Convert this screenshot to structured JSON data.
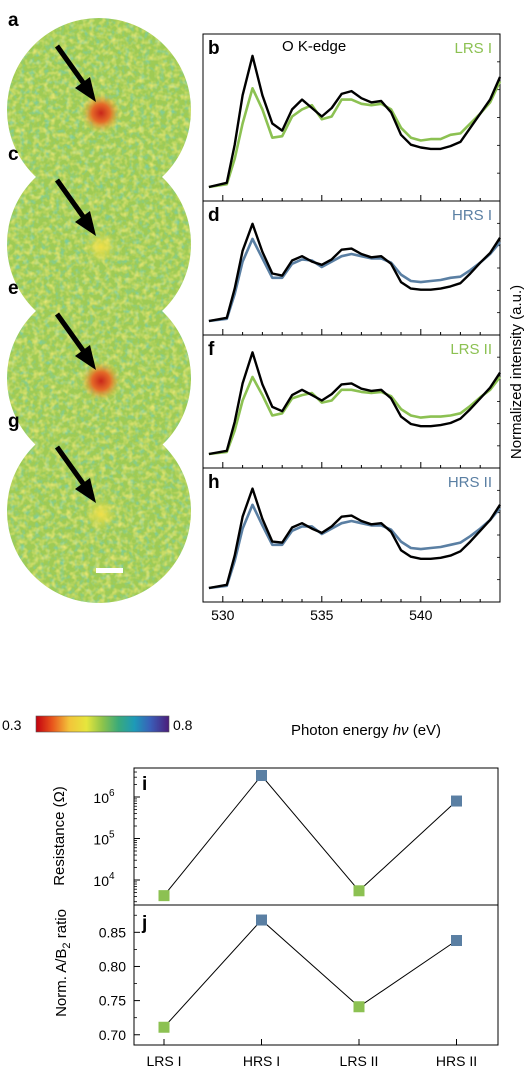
{
  "panel_letters": {
    "a": "a",
    "b": "b",
    "c": "c",
    "d": "d",
    "e": "e",
    "f": "f",
    "g": "g",
    "h": "h",
    "i": "i",
    "j": "j"
  },
  "spectra_title": "O K-edge",
  "colors": {
    "lrs": "#8cc152",
    "hrs": "#5a7fa3",
    "reference": "#000000"
  },
  "micrographs": [
    {
      "panel": "a",
      "has_bright_spot": true
    },
    {
      "panel": "c",
      "has_bright_spot": false
    },
    {
      "panel": "e",
      "has_bright_spot": true
    },
    {
      "panel": "g",
      "has_bright_spot": false
    }
  ],
  "colorbar": {
    "min_label": "0.3",
    "max_label": "0.8",
    "min": 0.3,
    "max": 0.8,
    "colormap": "rainbow"
  },
  "spectra_axes": {
    "xlabel_pre": "Photon energy ",
    "xlabel_sym": "hν",
    "xlabel_post": " (eV)",
    "ylabel": "Normalized intensity (a.u.)",
    "xlim": [
      529,
      544
    ],
    "xticks": [
      "530",
      "535",
      "540"
    ]
  },
  "chart_data": [
    {
      "type": "line",
      "panel": "b",
      "title": "O K-edge",
      "xlim": [
        529,
        544
      ],
      "series": [
        {
          "name": "LRS I",
          "color": "#8cc152",
          "x": [
            529.3,
            530.2,
            530.6,
            531.0,
            531.5,
            532.0,
            532.5,
            533.0,
            533.5,
            534.0,
            534.5,
            535.0,
            535.5,
            536.0,
            536.5,
            537.0,
            537.5,
            538.0,
            538.5,
            539.0,
            539.5,
            540.0,
            540.5,
            541.0,
            541.5,
            542.0,
            542.5,
            543.0,
            543.5,
            544.0
          ],
          "y": [
            0.0,
            0.02,
            0.2,
            0.45,
            0.7,
            0.55,
            0.35,
            0.36,
            0.5,
            0.55,
            0.58,
            0.48,
            0.5,
            0.62,
            0.62,
            0.59,
            0.58,
            0.59,
            0.55,
            0.42,
            0.35,
            0.33,
            0.34,
            0.34,
            0.37,
            0.38,
            0.45,
            0.52,
            0.6,
            0.75
          ]
        },
        {
          "name": "",
          "color": "#000000",
          "x": [
            529.3,
            530.2,
            530.6,
            531.0,
            531.5,
            532.0,
            532.5,
            533.0,
            533.5,
            534.0,
            534.5,
            535.0,
            535.5,
            536.0,
            536.5,
            537.0,
            537.5,
            538.0,
            538.5,
            539.0,
            539.5,
            540.0,
            540.5,
            541.0,
            541.5,
            542.0,
            542.5,
            543.0,
            543.5,
            544.0
          ],
          "y": [
            0.0,
            0.03,
            0.3,
            0.65,
            0.93,
            0.65,
            0.45,
            0.4,
            0.55,
            0.62,
            0.56,
            0.5,
            0.56,
            0.66,
            0.68,
            0.63,
            0.6,
            0.61,
            0.53,
            0.37,
            0.3,
            0.28,
            0.27,
            0.27,
            0.29,
            0.32,
            0.42,
            0.52,
            0.62,
            0.78
          ]
        }
      ]
    },
    {
      "type": "line",
      "panel": "d",
      "xlim": [
        529,
        544
      ],
      "series": [
        {
          "name": "HRS I",
          "color": "#5a7fa3",
          "x": [
            529.3,
            530.2,
            530.6,
            531.0,
            531.5,
            532.0,
            532.5,
            533.0,
            533.5,
            534.0,
            534.5,
            535.0,
            535.5,
            536.0,
            536.5,
            537.0,
            537.5,
            538.0,
            538.5,
            539.0,
            539.5,
            540.0,
            540.5,
            541.0,
            541.5,
            542.0,
            542.5,
            543.0,
            543.5,
            544.0
          ],
          "y": [
            0.0,
            0.02,
            0.25,
            0.55,
            0.76,
            0.58,
            0.4,
            0.4,
            0.53,
            0.57,
            0.56,
            0.5,
            0.55,
            0.6,
            0.62,
            0.6,
            0.58,
            0.58,
            0.54,
            0.43,
            0.37,
            0.36,
            0.37,
            0.38,
            0.4,
            0.41,
            0.47,
            0.54,
            0.62,
            0.73
          ]
        },
        {
          "name": "",
          "color": "#000000",
          "x": [
            529.3,
            530.2,
            530.6,
            531.0,
            531.5,
            532.0,
            532.5,
            533.0,
            533.5,
            534.0,
            534.5,
            535.0,
            535.5,
            536.0,
            536.5,
            537.0,
            537.5,
            538.0,
            538.5,
            539.0,
            539.5,
            540.0,
            540.5,
            541.0,
            541.5,
            542.0,
            542.5,
            543.0,
            543.5,
            544.0
          ],
          "y": [
            0.0,
            0.03,
            0.3,
            0.65,
            0.9,
            0.64,
            0.44,
            0.42,
            0.56,
            0.6,
            0.55,
            0.52,
            0.57,
            0.66,
            0.67,
            0.62,
            0.59,
            0.6,
            0.53,
            0.36,
            0.3,
            0.29,
            0.29,
            0.3,
            0.32,
            0.35,
            0.44,
            0.54,
            0.63,
            0.77
          ]
        }
      ]
    },
    {
      "type": "line",
      "panel": "f",
      "xlim": [
        529,
        544
      ],
      "series": [
        {
          "name": "LRS II",
          "color": "#8cc152",
          "x": [
            529.3,
            530.2,
            530.6,
            531.0,
            531.5,
            532.0,
            532.5,
            533.0,
            533.5,
            534.0,
            534.5,
            535.0,
            535.5,
            536.0,
            536.5,
            537.0,
            537.5,
            538.0,
            538.5,
            539.0,
            539.5,
            540.0,
            540.5,
            541.0,
            541.5,
            542.0,
            542.5,
            543.0,
            543.5,
            544.0
          ],
          "y": [
            0.0,
            0.02,
            0.22,
            0.5,
            0.72,
            0.55,
            0.36,
            0.38,
            0.52,
            0.55,
            0.57,
            0.48,
            0.5,
            0.6,
            0.6,
            0.58,
            0.57,
            0.58,
            0.54,
            0.42,
            0.36,
            0.34,
            0.35,
            0.35,
            0.36,
            0.38,
            0.45,
            0.53,
            0.6,
            0.72
          ]
        },
        {
          "name": "",
          "color": "#000000",
          "x": [
            529.3,
            530.2,
            530.6,
            531.0,
            531.5,
            532.0,
            532.5,
            533.0,
            533.5,
            534.0,
            534.5,
            535.0,
            535.5,
            536.0,
            536.5,
            537.0,
            537.5,
            538.0,
            538.5,
            539.0,
            539.5,
            540.0,
            540.5,
            541.0,
            541.5,
            542.0,
            542.5,
            543.0,
            543.5,
            544.0
          ],
          "y": [
            0.0,
            0.03,
            0.3,
            0.66,
            0.95,
            0.65,
            0.44,
            0.4,
            0.55,
            0.6,
            0.55,
            0.5,
            0.56,
            0.65,
            0.66,
            0.61,
            0.59,
            0.6,
            0.52,
            0.35,
            0.28,
            0.26,
            0.26,
            0.27,
            0.29,
            0.33,
            0.42,
            0.52,
            0.62,
            0.76
          ]
        }
      ]
    },
    {
      "type": "line",
      "panel": "h",
      "xlim": [
        529,
        544
      ],
      "xticks": [
        530,
        535,
        540
      ],
      "series": [
        {
          "name": "HRS II",
          "color": "#5a7fa3",
          "x": [
            529.3,
            530.2,
            530.6,
            531.0,
            531.5,
            532.0,
            532.5,
            533.0,
            533.5,
            534.0,
            534.5,
            535.0,
            535.5,
            536.0,
            536.5,
            537.0,
            537.5,
            538.0,
            538.5,
            539.0,
            539.5,
            540.0,
            540.5,
            541.0,
            541.5,
            542.0,
            542.5,
            543.0,
            543.5,
            544.0
          ],
          "y": [
            0.0,
            0.02,
            0.25,
            0.55,
            0.77,
            0.58,
            0.4,
            0.4,
            0.53,
            0.57,
            0.57,
            0.5,
            0.55,
            0.6,
            0.62,
            0.6,
            0.58,
            0.58,
            0.54,
            0.43,
            0.37,
            0.36,
            0.37,
            0.38,
            0.4,
            0.42,
            0.48,
            0.55,
            0.63,
            0.74
          ]
        },
        {
          "name": "",
          "color": "#000000",
          "x": [
            529.3,
            530.2,
            530.6,
            531.0,
            531.5,
            532.0,
            532.5,
            533.0,
            533.5,
            534.0,
            534.5,
            535.0,
            535.5,
            536.0,
            536.5,
            537.0,
            537.5,
            538.0,
            538.5,
            539.0,
            539.5,
            540.0,
            540.5,
            541.0,
            541.5,
            542.0,
            542.5,
            543.0,
            543.5,
            544.0
          ],
          "y": [
            0.0,
            0.03,
            0.3,
            0.66,
            0.92,
            0.64,
            0.43,
            0.42,
            0.56,
            0.6,
            0.55,
            0.51,
            0.57,
            0.66,
            0.67,
            0.62,
            0.59,
            0.6,
            0.52,
            0.35,
            0.29,
            0.27,
            0.27,
            0.28,
            0.3,
            0.34,
            0.43,
            0.53,
            0.63,
            0.77
          ]
        }
      ]
    },
    {
      "type": "scatter",
      "panel": "i",
      "ylabel": "Resistance (Ω)",
      "yscale": "log",
      "ylim": [
        2500,
        5000000
      ],
      "ytick_values": [
        10000,
        100000,
        1000000
      ],
      "ytick_bases": [
        "10",
        "10",
        "10"
      ],
      "ytick_exps": [
        "4",
        "5",
        "6"
      ],
      "categories": [
        "LRS I",
        "HRS I",
        "LRS II",
        "HRS II"
      ],
      "values": [
        4200,
        3300000,
        5500,
        800000
      ],
      "point_colors": [
        "#8cc152",
        "#5a7fa3",
        "#8cc152",
        "#5a7fa3"
      ]
    },
    {
      "type": "scatter",
      "panel": "j",
      "ylabel_pre": "Norm. A/B",
      "ylabel_sub": "2",
      "ylabel_post": " ratio",
      "ylim": [
        0.685,
        0.89
      ],
      "yticks": [
        "0.70",
        "0.75",
        "0.80",
        "0.85"
      ],
      "ytick_values": [
        0.7,
        0.75,
        0.8,
        0.85
      ],
      "categories": [
        "LRS I",
        "HRS I",
        "LRS II",
        "HRS II"
      ],
      "values": [
        0.711,
        0.868,
        0.741,
        0.838
      ],
      "point_colors": [
        "#8cc152",
        "#5a7fa3",
        "#8cc152",
        "#5a7fa3"
      ]
    }
  ]
}
